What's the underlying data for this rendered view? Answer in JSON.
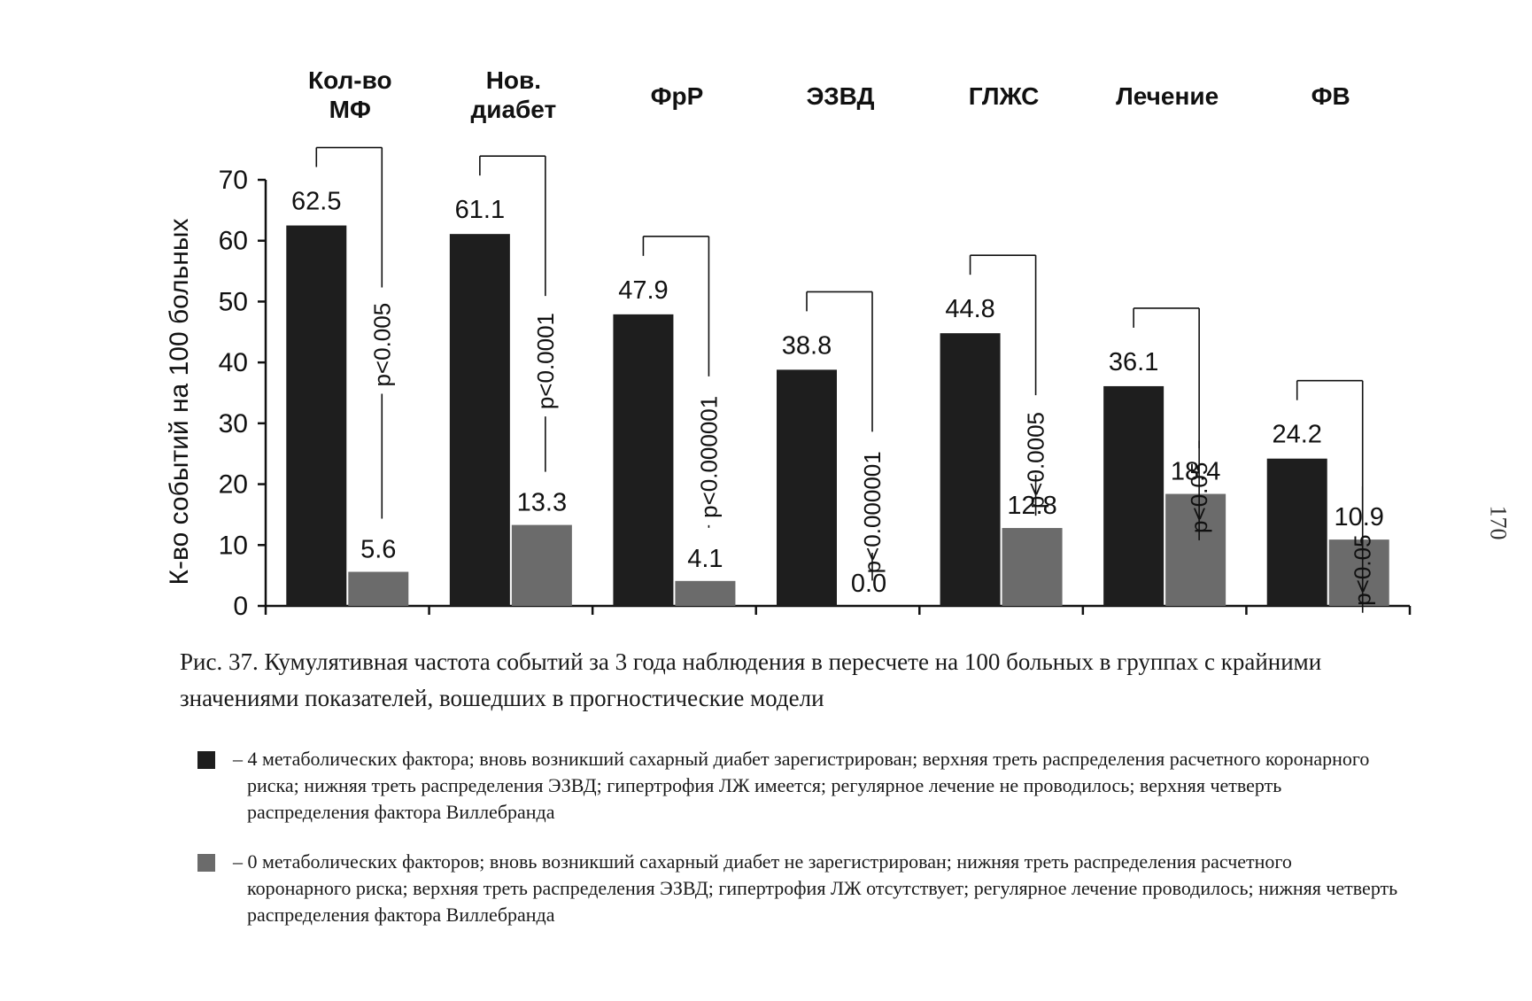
{
  "chart_data": {
    "type": "bar",
    "ylabel": "К-во событий на 100 больных",
    "ylim": [
      0,
      70
    ],
    "yticks": [
      0,
      10,
      20,
      30,
      40,
      50,
      60,
      70
    ],
    "grid": false,
    "categories": [
      [
        "Кол-во",
        "МФ"
      ],
      [
        "Нов.",
        "диабет"
      ],
      [
        "ФрР"
      ],
      [
        "ЭЗВД"
      ],
      [
        "ГЛЖС"
      ],
      [
        "Лечение"
      ],
      [
        "ФВ"
      ]
    ],
    "series": [
      {
        "color": "#1e1e1e",
        "values": [
          62.5,
          61.1,
          47.9,
          38.8,
          44.8,
          36.1,
          24.2
        ]
      },
      {
        "color": "#6b6b6b",
        "values": [
          5.6,
          13.3,
          4.1,
          0.0,
          12.8,
          18.4,
          10.9
        ]
      }
    ],
    "value_labels": [
      [
        "62.5",
        "61.1",
        "47.9",
        "38.8",
        "44.8",
        "36.1",
        "24.2"
      ],
      [
        "5.6",
        "13.3",
        "4.1",
        "0.0",
        "12.8",
        "18.4",
        "10.9"
      ]
    ],
    "pvalues": [
      "p<0.005",
      "p<0.0001",
      "p<0.000001",
      "p<0.000001",
      "p<0.0005",
      "p<0.05",
      "p<0.05"
    ]
  },
  "caption": "Рис. 37. Кумулятивная частота событий за 3 года наблюдения в пересчете на 100 больных в группах с крайними значениями показателей, вошедших в прогностические модели",
  "legend": [
    {
      "color": "#1e1e1e",
      "text": "– 4 метаболических фактора; вновь возникший сахарный диабет зарегистрирован; верхняя треть распределения расчетного коронарного риска; нижняя треть распределения ЭЗВД; гипертрофия ЛЖ имеется; регулярное лечение не проводилось; верхняя четверть распределения фактора Виллебранда"
    },
    {
      "color": "#6b6b6b",
      "text": "– 0 метаболических факторов; вновь возникший сахарный диабет не зарегистрирован; нижняя треть распределения расчетного коронарного риска; верхняя треть распределения ЭЗВД; гипертрофия ЛЖ отсутствует; регулярное лечение проводилось; нижняя четверть распределения фактора Виллебранда"
    }
  ],
  "page_number": "170"
}
